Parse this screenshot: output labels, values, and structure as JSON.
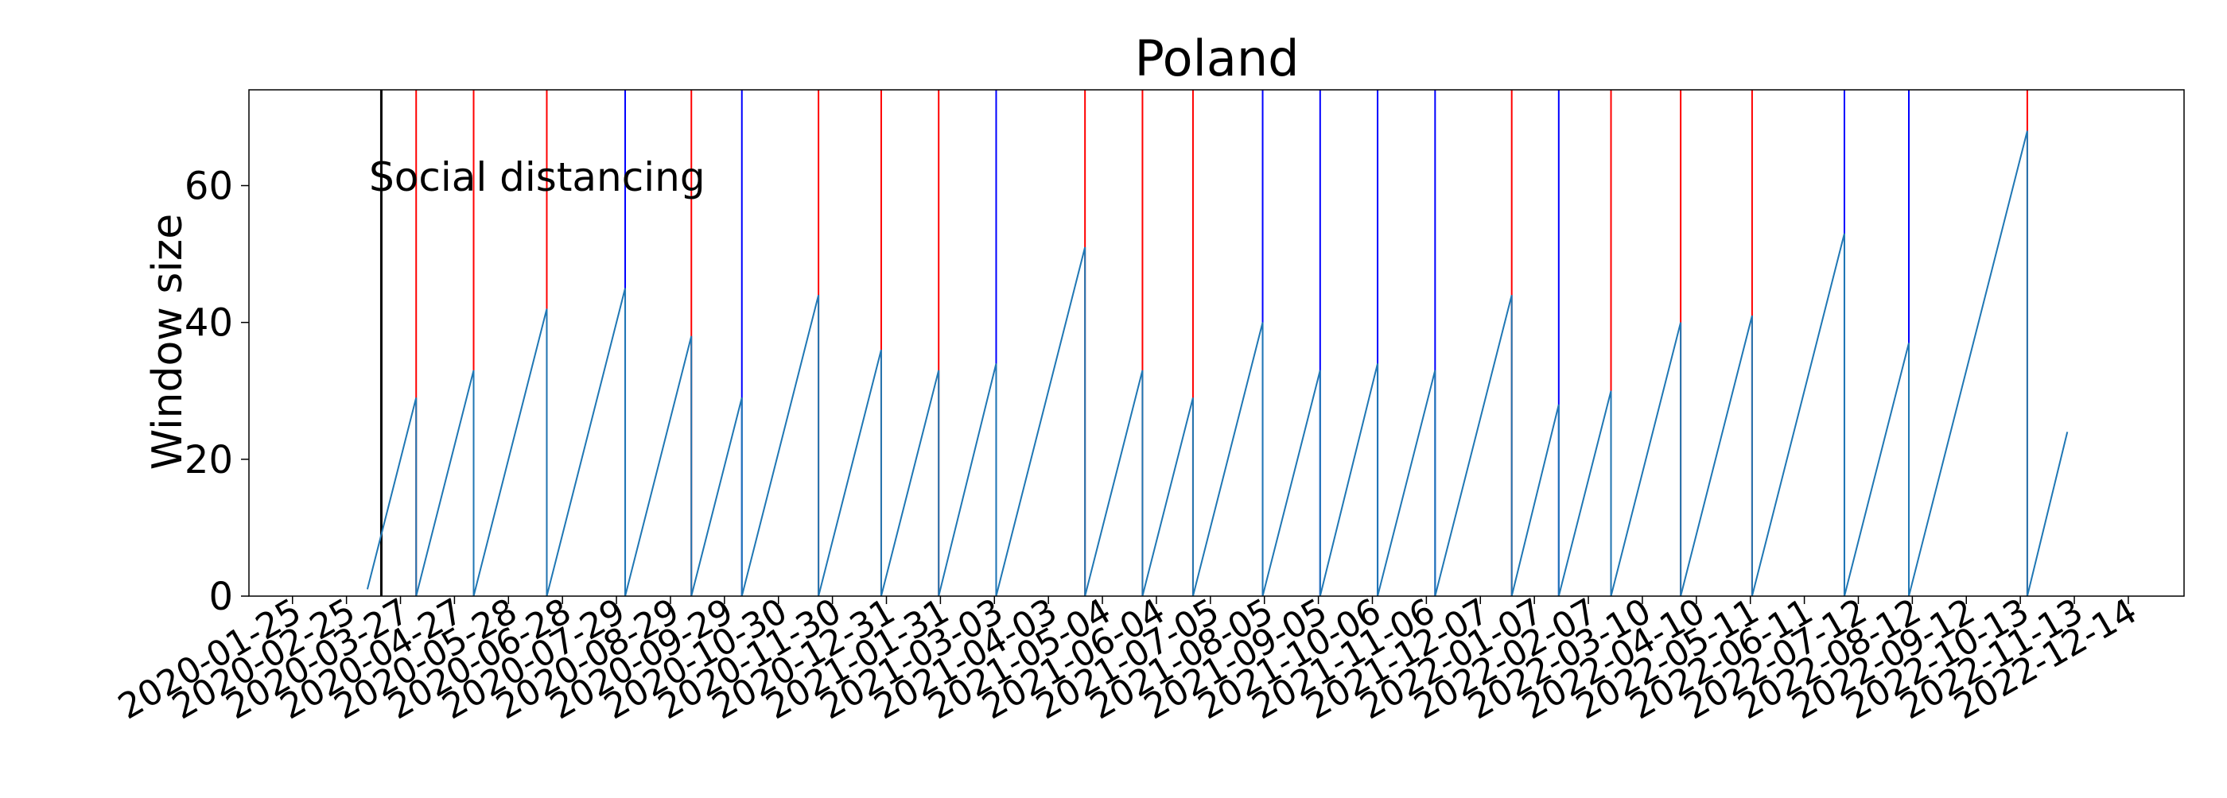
{
  "chart_data": {
    "type": "line",
    "title": "Poland",
    "xlabel": "",
    "ylabel": "Window size",
    "y_ticks": [
      0,
      20,
      40,
      60
    ],
    "ylim": [
      0,
      74
    ],
    "xlim": [
      "2019-12-31",
      "2023-01-15"
    ],
    "x_ticks": [
      "2020-01-25",
      "2020-02-25",
      "2020-03-27",
      "2020-04-27",
      "2020-05-28",
      "2020-06-28",
      "2020-07-29",
      "2020-08-29",
      "2020-09-29",
      "2020-10-30",
      "2020-11-30",
      "2020-12-31",
      "2021-01-31",
      "2021-03-03",
      "2021-04-03",
      "2021-05-04",
      "2021-06-04",
      "2021-07-05",
      "2021-08-05",
      "2021-09-05",
      "2021-10-06",
      "2021-11-06",
      "2021-12-07",
      "2022-01-07",
      "2022-02-07",
      "2022-03-10",
      "2022-04-10",
      "2022-05-11",
      "2022-06-11",
      "2022-07-12",
      "2022-08-12",
      "2022-09-12",
      "2022-10-13",
      "2022-11-13",
      "2022-12-14"
    ],
    "grid": false,
    "annotation": {
      "label": "Social distancing",
      "date": "2020-03-16",
      "color": "#000000"
    },
    "colors": {
      "series": "#1f77b4",
      "red_line": "#ff0000",
      "blue_line": "#0000ff"
    },
    "segments": [
      {
        "start": "2020-03-08",
        "end": "2020-04-05",
        "peak": 29,
        "end_marker": "red"
      },
      {
        "start": "2020-04-05",
        "end": "2020-05-08",
        "peak": 33,
        "end_marker": "red"
      },
      {
        "start": "2020-05-08",
        "end": "2020-06-19",
        "peak": 42,
        "end_marker": "red"
      },
      {
        "start": "2020-06-19",
        "end": "2020-08-03",
        "peak": 45,
        "end_marker": "blue"
      },
      {
        "start": "2020-08-03",
        "end": "2020-09-10",
        "peak": 38,
        "end_marker": "red"
      },
      {
        "start": "2020-09-10",
        "end": "2020-10-09",
        "peak": 29,
        "end_marker": "blue"
      },
      {
        "start": "2020-10-09",
        "end": "2020-11-22",
        "peak": 44,
        "end_marker": "red"
      },
      {
        "start": "2020-11-22",
        "end": "2020-12-28",
        "peak": 36,
        "end_marker": "red"
      },
      {
        "start": "2020-12-28",
        "end": "2021-01-30",
        "peak": 33,
        "end_marker": "red"
      },
      {
        "start": "2021-01-30",
        "end": "2021-03-04",
        "peak": 34,
        "end_marker": "blue"
      },
      {
        "start": "2021-03-04",
        "end": "2021-04-24",
        "peak": 51,
        "end_marker": "red"
      },
      {
        "start": "2021-04-24",
        "end": "2021-05-27",
        "peak": 33,
        "end_marker": "red"
      },
      {
        "start": "2021-05-27",
        "end": "2021-06-25",
        "peak": 29,
        "end_marker": "red"
      },
      {
        "start": "2021-06-25",
        "end": "2021-08-04",
        "peak": 40,
        "end_marker": "blue"
      },
      {
        "start": "2021-08-04",
        "end": "2021-09-06",
        "peak": 33,
        "end_marker": "blue"
      },
      {
        "start": "2021-09-06",
        "end": "2021-10-09",
        "peak": 34,
        "end_marker": "blue"
      },
      {
        "start": "2021-10-09",
        "end": "2021-11-11",
        "peak": 33,
        "end_marker": "blue"
      },
      {
        "start": "2021-11-11",
        "end": "2021-12-25",
        "peak": 44,
        "end_marker": "red"
      },
      {
        "start": "2021-12-25",
        "end": "2022-01-21",
        "peak": 28,
        "end_marker": "blue"
      },
      {
        "start": "2022-01-21",
        "end": "2022-02-20",
        "peak": 30,
        "end_marker": "red"
      },
      {
        "start": "2022-02-20",
        "end": "2022-04-01",
        "peak": 40,
        "end_marker": "red"
      },
      {
        "start": "2022-04-01",
        "end": "2022-05-12",
        "peak": 41,
        "end_marker": "red"
      },
      {
        "start": "2022-05-12",
        "end": "2022-07-04",
        "peak": 53,
        "end_marker": "blue"
      },
      {
        "start": "2022-07-04",
        "end": "2022-08-10",
        "peak": 37,
        "end_marker": "blue"
      },
      {
        "start": "2022-08-10",
        "end": "2022-10-17",
        "peak": 68,
        "end_marker": "red"
      },
      {
        "start": "2022-10-17",
        "end": "2022-11-09",
        "peak": 24,
        "end_marker": null
      }
    ]
  }
}
